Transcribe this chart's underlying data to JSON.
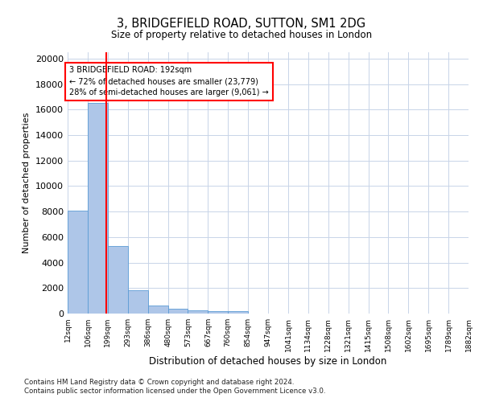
{
  "title1": "3, BRIDGEFIELD ROAD, SUTTON, SM1 2DG",
  "title2": "Size of property relative to detached houses in London",
  "xlabel": "Distribution of detached houses by size in London",
  "ylabel": "Number of detached properties",
  "annotation_line1": "3 BRIDGEFIELD ROAD: 192sqm",
  "annotation_line2": "← 72% of detached houses are smaller (23,779)",
  "annotation_line3": "28% of semi-detached houses are larger (9,061) →",
  "footer1": "Contains HM Land Registry data © Crown copyright and database right 2024.",
  "footer2": "Contains public sector information licensed under the Open Government Licence v3.0.",
  "bar_color": "#aec6e8",
  "bar_edge_color": "#5b9bd5",
  "red_line_color": "#ff0000",
  "annotation_box_color": "#ff0000",
  "background_color": "#ffffff",
  "grid_color": "#c8d4e8",
  "bin_labels": [
    "12sqm",
    "106sqm",
    "199sqm",
    "293sqm",
    "386sqm",
    "480sqm",
    "573sqm",
    "667sqm",
    "760sqm",
    "854sqm",
    "947sqm",
    "1041sqm",
    "1134sqm",
    "1228sqm",
    "1321sqm",
    "1415sqm",
    "1508sqm",
    "1602sqm",
    "1695sqm",
    "1789sqm",
    "1882sqm"
  ],
  "bar_heights": [
    8100,
    16500,
    5300,
    1850,
    650,
    350,
    270,
    200,
    190,
    0,
    0,
    0,
    0,
    0,
    0,
    0,
    0,
    0,
    0,
    0
  ],
  "n_bins": 20,
  "bin_edges": [
    12,
    106,
    199,
    293,
    386,
    480,
    573,
    667,
    760,
    854,
    947,
    1041,
    1134,
    1228,
    1321,
    1415,
    1508,
    1602,
    1695,
    1789,
    1882
  ],
  "property_size": 192,
  "ylim": [
    0,
    20500
  ],
  "yticks": [
    0,
    2000,
    4000,
    6000,
    8000,
    10000,
    12000,
    14000,
    16000,
    18000,
    20000
  ]
}
